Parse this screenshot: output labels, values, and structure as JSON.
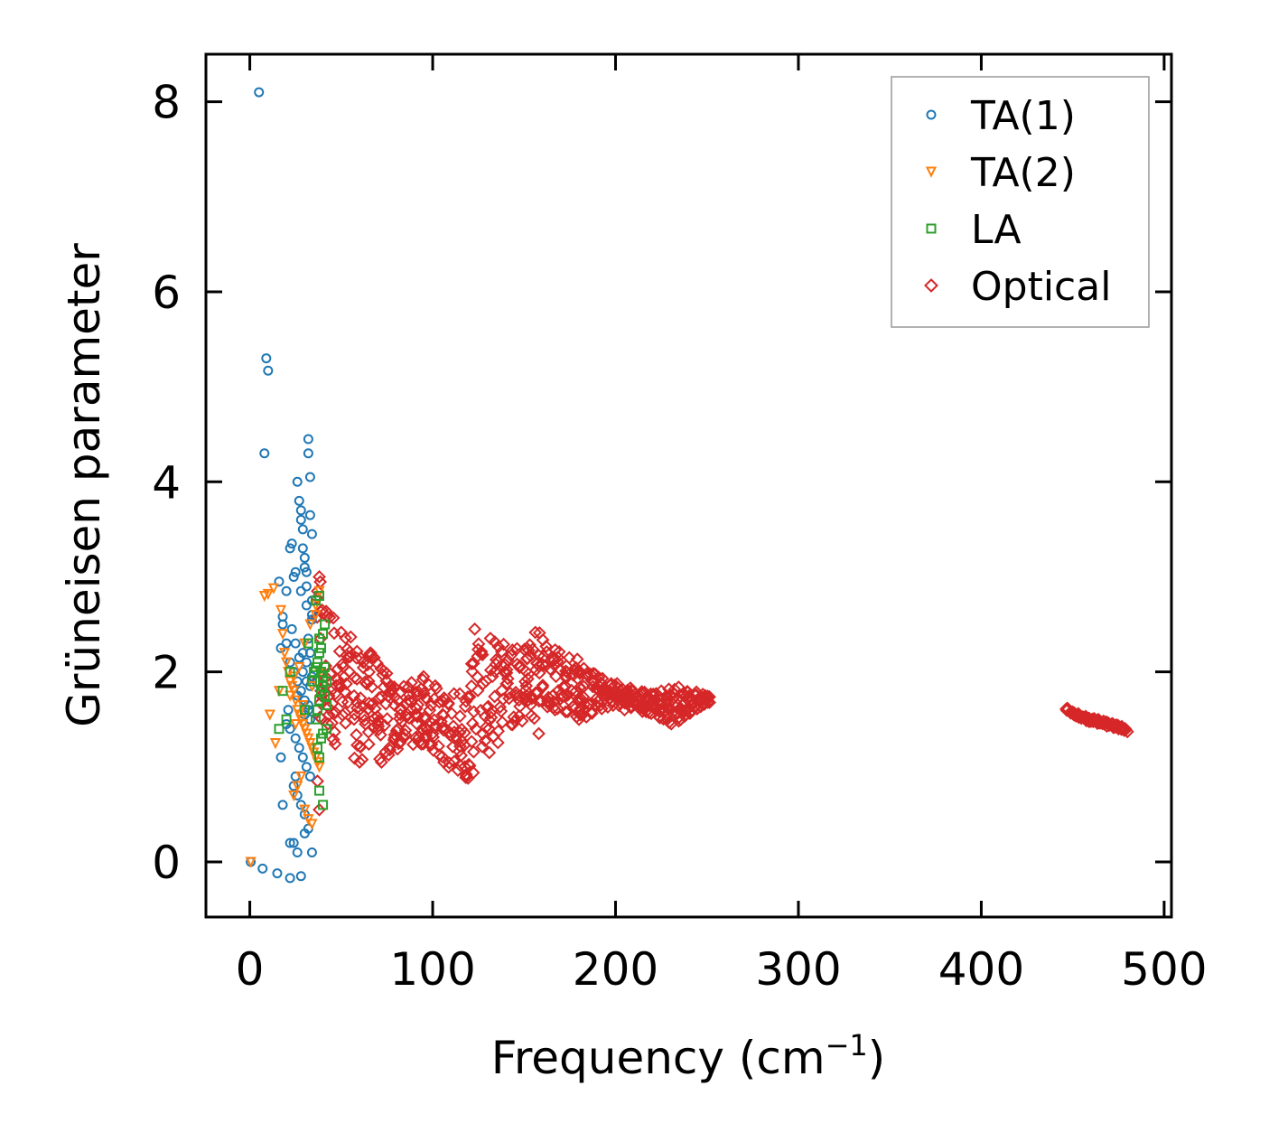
{
  "chart_data": {
    "type": "scatter",
    "title": "",
    "xlabel": "Frequency (cm",
    "xlabel_sup": "−1",
    "xlabel_close": ")",
    "ylabel": "Grüneisen parameter",
    "xlim": [
      -24,
      504
    ],
    "ylim": [
      -0.58,
      8.5
    ],
    "x_ticks": [
      0,
      100,
      200,
      300,
      400,
      500
    ],
    "y_ticks": [
      0,
      2,
      4,
      6,
      8
    ],
    "grid": false,
    "legend_position": "top-right",
    "series": [
      {
        "name": "TA(1)",
        "marker": "circle",
        "color": "#1f77b4",
        "x": [
          0.5,
          5,
          7,
          9,
          10,
          8,
          15,
          17,
          18,
          20,
          22,
          23,
          24,
          24,
          25,
          26,
          27,
          28,
          28,
          29,
          29,
          30,
          30,
          31,
          31,
          32,
          32,
          33,
          33,
          34,
          34,
          34,
          16,
          18,
          20,
          22,
          24,
          26,
          28,
          30,
          32,
          33,
          20,
          22,
          25,
          27,
          29,
          31,
          33,
          24,
          26,
          28,
          30,
          32,
          18,
          22,
          26,
          30,
          34,
          23,
          25,
          27,
          29,
          31,
          33,
          22,
          25,
          28,
          31,
          34,
          17,
          21,
          26,
          29,
          32,
          28,
          30,
          32,
          34,
          31,
          33
        ],
        "y": [
          0.0,
          8.1,
          -0.07,
          5.3,
          5.17,
          4.3,
          -0.12,
          2.25,
          2.58,
          2.85,
          -0.17,
          3.35,
          3.0,
          0.2,
          0.9,
          4.0,
          3.8,
          3.7,
          3.6,
          3.5,
          3.3,
          3.2,
          3.1,
          3.05,
          2.9,
          4.45,
          4.3,
          4.05,
          3.65,
          3.45,
          2.75,
          2.6,
          2.95,
          2.5,
          2.3,
          2.1,
          2.0,
          1.9,
          1.8,
          1.7,
          1.6,
          1.5,
          1.45,
          1.4,
          1.3,
          1.2,
          1.1,
          1.0,
          0.9,
          0.8,
          0.7,
          0.6,
          0.5,
          0.35,
          0.6,
          0.2,
          0.1,
          0.3,
          0.1,
          2.45,
          2.3,
          2.15,
          2.0,
          1.9,
          1.85,
          3.3,
          3.05,
          2.85,
          2.7,
          2.55,
          1.1,
          1.6,
          1.75,
          2.2,
          2.35,
          -0.15,
          1.55,
          1.65,
          1.95,
          2.1,
          2.2
        ],
        "size": 9
      },
      {
        "name": "TA(2)",
        "marker": "triangle_down",
        "color": "#ff7f0e",
        "x": [
          0.5,
          8,
          10,
          11,
          13,
          14,
          16,
          17,
          18,
          19,
          20,
          21,
          22,
          23,
          24,
          25,
          26,
          27,
          28,
          29,
          30,
          31,
          32,
          33,
          34,
          35,
          36,
          37,
          38,
          24,
          26,
          28,
          30,
          32,
          34,
          36,
          22,
          24,
          27,
          30,
          33,
          36,
          38,
          25,
          29,
          34,
          38
        ],
        "y": [
          0.0,
          2.8,
          2.82,
          1.55,
          2.88,
          1.25,
          1.8,
          2.65,
          2.4,
          2.2,
          2.1,
          2.0,
          1.9,
          1.85,
          1.8,
          1.7,
          1.6,
          1.55,
          1.5,
          1.45,
          1.4,
          1.35,
          1.3,
          1.25,
          1.2,
          1.15,
          1.1,
          1.05,
          1.0,
          0.7,
          0.8,
          0.9,
          0.55,
          0.45,
          0.4,
          2.6,
          1.75,
          1.95,
          2.05,
          2.3,
          2.5,
          2.7,
          2.85,
          1.45,
          1.65,
          1.85,
          2.0
        ],
        "size": 9
      },
      {
        "name": "LA",
        "marker": "square",
        "color": "#2ca02c",
        "x": [
          16,
          18,
          20,
          22,
          30,
          32,
          34,
          35,
          36,
          37,
          38,
          39,
          40,
          41,
          42,
          36,
          37,
          38,
          39,
          40,
          41,
          42,
          38,
          39,
          40,
          41,
          37,
          38,
          39,
          40,
          38,
          40,
          42,
          36,
          38
        ],
        "y": [
          1.4,
          1.8,
          1.5,
          2.0,
          1.6,
          2.3,
          1.9,
          2.0,
          2.05,
          2.1,
          2.2,
          2.0,
          1.95,
          2.05,
          1.9,
          1.5,
          1.6,
          1.7,
          1.8,
          1.85,
          1.75,
          1.65,
          2.35,
          2.25,
          2.4,
          2.5,
          1.2,
          1.1,
          1.3,
          1.35,
          0.75,
          0.6,
          1.4,
          2.75,
          2.8
        ],
        "size": 9
      },
      {
        "name": "Optical",
        "marker": "diamond",
        "color": "#d62728",
        "bands": [
          {
            "x": [
              36,
              40,
              44,
              48,
              52,
              56,
              60,
              64,
              68,
              72,
              76,
              80,
              84,
              88,
              92,
              96,
              100,
              104,
              108,
              112,
              116,
              120,
              124,
              128,
              132,
              136,
              140,
              144,
              148,
              152,
              156,
              160,
              164,
              168,
              172,
              176,
              180,
              184,
              188,
              192,
              196,
              200,
              204,
              208,
              212,
              216,
              220,
              224,
              228,
              232,
              236,
              240,
              244,
              248,
              252
            ],
            "lo": [
              0.85,
              1.25,
              1.3,
              1.2,
              1.15,
              1.1,
              1.05,
              1.1,
              1.05,
              1.05,
              1.1,
              1.15,
              1.2,
              1.25,
              1.2,
              1.2,
              1.15,
              1.05,
              1.0,
              0.95,
              0.92,
              0.85,
              0.95,
              1.05,
              1.15,
              1.25,
              1.35,
              1.4,
              1.45,
              1.5,
              1.5,
              1.55,
              1.6,
              1.6,
              1.55,
              1.55,
              1.5,
              1.5,
              1.55,
              1.6,
              1.6,
              1.65,
              1.6,
              1.6,
              1.6,
              1.55,
              1.55,
              1.5,
              1.45,
              1.45,
              1.5,
              1.55,
              1.6,
              1.65,
              1.68
            ],
            "hi": [
              3.05,
              2.9,
              2.75,
              2.5,
              2.45,
              2.35,
              2.3,
              2.2,
              2.2,
              2.1,
              1.95,
              1.85,
              1.85,
              1.9,
              1.9,
              1.95,
              1.9,
              1.85,
              1.8,
              1.8,
              1.85,
              1.95,
              2.45,
              2.4,
              2.35,
              2.3,
              2.35,
              2.3,
              2.25,
              2.4,
              2.5,
              2.45,
              2.35,
              2.3,
              2.25,
              2.2,
              2.15,
              2.05,
              2.0,
              1.95,
              1.9,
              1.9,
              1.85,
              1.85,
              1.8,
              1.8,
              1.8,
              1.8,
              1.85,
              1.85,
              1.85,
              1.8,
              1.8,
              1.78,
              1.73
            ]
          },
          {
            "x": [
              446,
              450,
              455,
              460,
              465,
              470,
              475,
              480
            ],
            "lo": [
              1.6,
              1.55,
              1.5,
              1.47,
              1.45,
              1.42,
              1.4,
              1.37
            ],
            "hi": [
              1.63,
              1.58,
              1.55,
              1.52,
              1.5,
              1.47,
              1.44,
              1.41
            ]
          }
        ],
        "outliers": {
          "x": [
            38,
            38,
            37,
            37,
            158,
            180,
            182,
            200,
            60,
            62,
            66,
            68,
            72,
            95,
            123
          ],
          "y": [
            3.0,
            0.55,
            0.85,
            2.85,
            1.35,
            1.5,
            1.55,
            1.8,
            1.05,
            2.1,
            2.2,
            2.15,
            1.05,
            1.95,
            2.45
          ]
        },
        "size": 12
      }
    ]
  }
}
